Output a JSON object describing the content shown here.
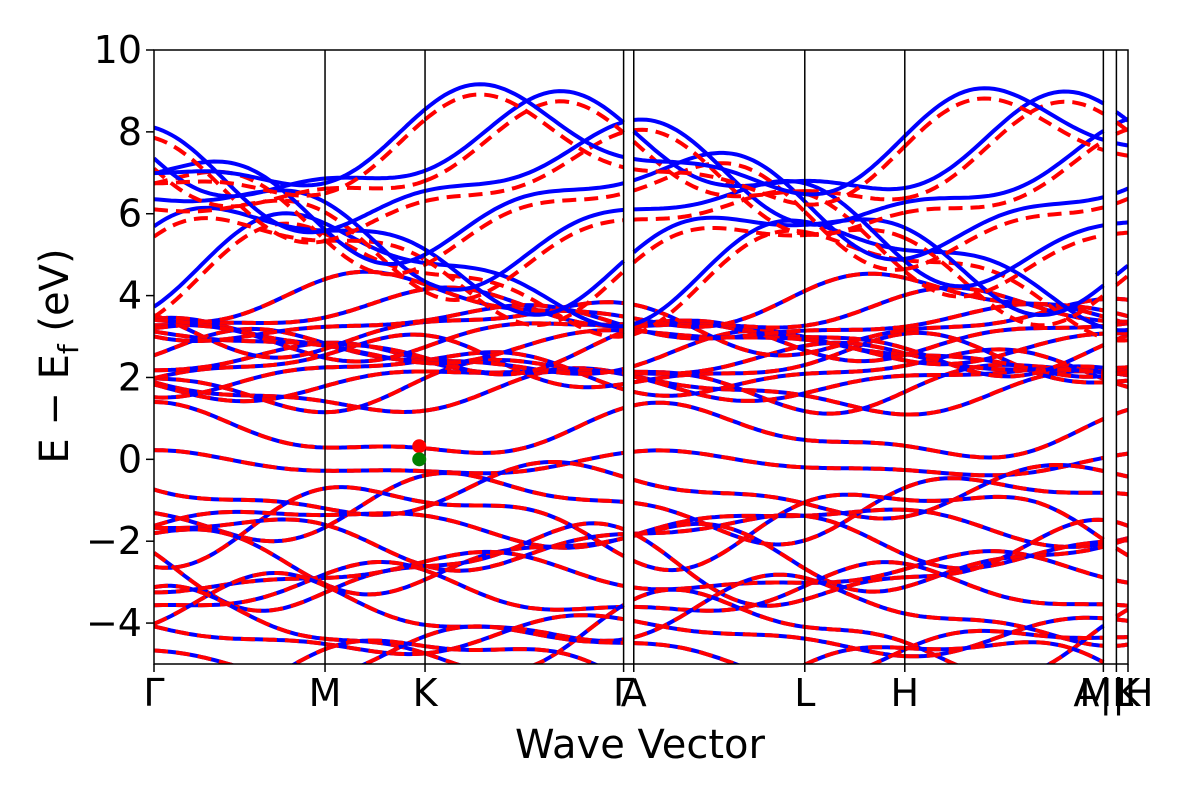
{
  "chart_data": {
    "type": "line",
    "title": "",
    "xlabel": "Wave Vector",
    "ylabel": "E − E_f (eV)",
    "ylabel_parts": {
      "main": "E − E",
      "sub": "f",
      "unit": " (eV)"
    },
    "ylim": [
      -5,
      10
    ],
    "yticks": [
      {
        "value": -4,
        "label": "−4"
      },
      {
        "value": -2,
        "label": "−2"
      },
      {
        "value": 0,
        "label": "0"
      },
      {
        "value": 2,
        "label": "2"
      },
      {
        "value": 4,
        "label": "4"
      },
      {
        "value": 6,
        "label": "6"
      },
      {
        "value": 8,
        "label": "8"
      },
      {
        "value": 10,
        "label": "10"
      }
    ],
    "xlim": [
      0,
      6.72
    ],
    "high_symmetry_points": [
      {
        "x": 0.0,
        "label": "Γ"
      },
      {
        "x": 1.18,
        "label": "M"
      },
      {
        "x": 1.87,
        "label": "K"
      },
      {
        "x": 3.24,
        "label": "Γ"
      },
      {
        "x": 3.31,
        "label": "A"
      },
      {
        "x": 4.49,
        "label": "L"
      },
      {
        "x": 5.18,
        "label": "H"
      },
      {
        "x": 6.55,
        "label": "A|L"
      },
      {
        "x": 6.64,
        "label": "M|H"
      },
      {
        "x": 6.72,
        "label": "K"
      }
    ],
    "grid": false,
    "legend": "none",
    "series": [
      {
        "style": "solid",
        "color": "#0000ff"
      },
      {
        "style": "dashed",
        "color": "#ff0000"
      }
    ],
    "markers": [
      {
        "x": 1.83,
        "y": 0.32,
        "color": "#ff0000",
        "meaning": "CBM"
      },
      {
        "x": 1.83,
        "y": 0.0,
        "color": "#008000",
        "meaning": "VBM"
      }
    ],
    "band_gap_eV": 0.3,
    "conduction_bands_K": [
      0.3,
      1.4,
      1.55,
      1.7,
      1.85,
      2.0,
      2.15,
      2.3,
      2.45,
      2.6,
      2.75,
      2.9,
      3.1,
      3.3,
      3.5,
      4.0,
      4.4,
      5.0,
      5.6,
      6.2,
      6.8,
      7.0
    ],
    "valence_bands_K": [
      0.0,
      -0.5,
      -0.8,
      -1.1,
      -1.4,
      -1.7,
      -2.0,
      -2.2,
      -2.6,
      -3.0,
      -3.4,
      -3.8,
      -4.1,
      -4.4,
      -4.7
    ]
  }
}
